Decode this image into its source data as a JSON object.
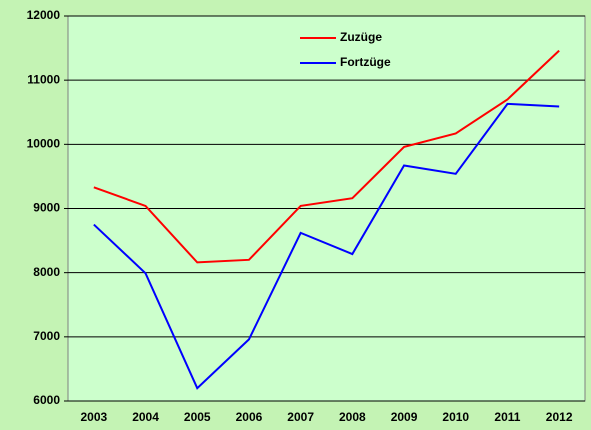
{
  "chart_data": {
    "type": "line",
    "categories": [
      "2003",
      "2004",
      "2005",
      "2006",
      "2007",
      "2008",
      "2009",
      "2010",
      "2011",
      "2012"
    ],
    "series": [
      {
        "name": "Zuzüge",
        "color": "#ff0000",
        "values": [
          9330,
          9040,
          8160,
          8200,
          9040,
          9160,
          9960,
          10170,
          10700,
          11460
        ]
      },
      {
        "name": "Fortzüge",
        "color": "#0000ff",
        "values": [
          8750,
          7990,
          6200,
          6960,
          8620,
          8290,
          9670,
          9540,
          10630,
          10590
        ]
      }
    ],
    "ylim": [
      6000,
      12000
    ],
    "yticks": [
      6000,
      7000,
      8000,
      9000,
      10000,
      11000,
      12000
    ],
    "grid": true,
    "legend": "top"
  }
}
